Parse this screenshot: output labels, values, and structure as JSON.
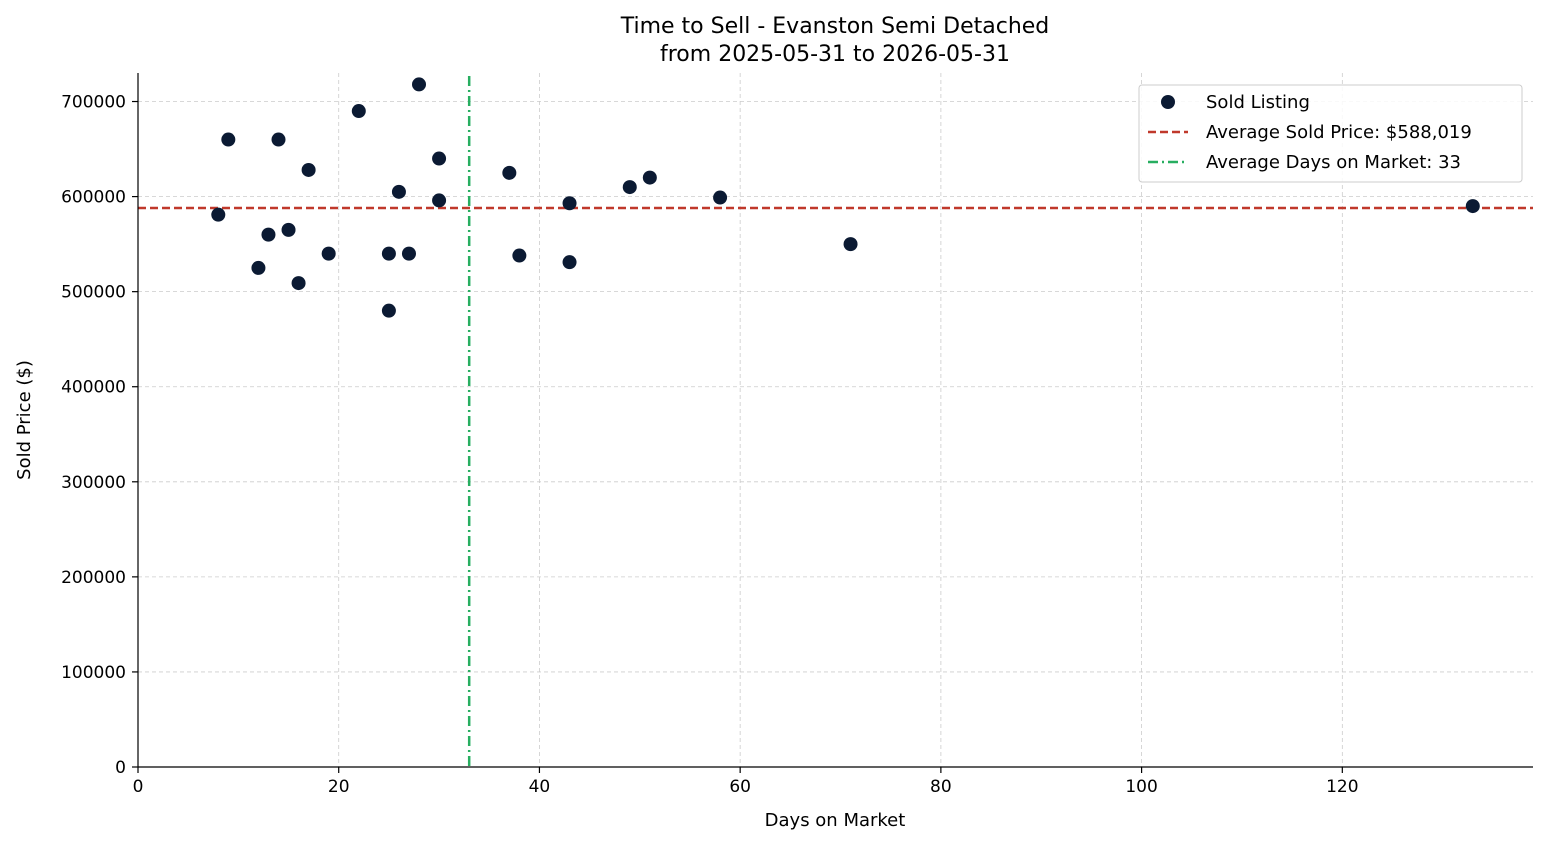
{
  "chart_data": {
    "type": "scatter",
    "title": "Time to Sell - Evanston Semi Detached",
    "subtitle": "from 2025-05-31 to 2026-05-31",
    "xlabel": "Days on Market",
    "ylabel": "Sold Price ($)",
    "xlim": [
      0,
      139
    ],
    "ylim": [
      0,
      730000
    ],
    "x_ticks": [
      0,
      20,
      40,
      60,
      80,
      100,
      120
    ],
    "y_ticks": [
      0,
      100000,
      200000,
      300000,
      400000,
      500000,
      600000,
      700000
    ],
    "x_tick_labels": [
      "0",
      "20",
      "40",
      "60",
      "80",
      "100",
      "120"
    ],
    "y_tick_labels": [
      "0",
      "100000",
      "200000",
      "300000",
      "400000",
      "500000",
      "600000",
      "700000"
    ],
    "grid": true,
    "legend_position": "top-right",
    "series": [
      {
        "name": "Sold Listing",
        "color": "#0b1a33",
        "points": [
          {
            "x": 8,
            "y": 581000
          },
          {
            "x": 9,
            "y": 660000
          },
          {
            "x": 12,
            "y": 525000
          },
          {
            "x": 13,
            "y": 560000
          },
          {
            "x": 14,
            "y": 660000
          },
          {
            "x": 15,
            "y": 565000
          },
          {
            "x": 16,
            "y": 509000
          },
          {
            "x": 17,
            "y": 628000
          },
          {
            "x": 19,
            "y": 540000
          },
          {
            "x": 22,
            "y": 690000
          },
          {
            "x": 25,
            "y": 540000
          },
          {
            "x": 25,
            "y": 480000
          },
          {
            "x": 26,
            "y": 605000
          },
          {
            "x": 27,
            "y": 540000
          },
          {
            "x": 28,
            "y": 718000
          },
          {
            "x": 30,
            "y": 640000
          },
          {
            "x": 30,
            "y": 596000
          },
          {
            "x": 37,
            "y": 625000
          },
          {
            "x": 38,
            "y": 538000
          },
          {
            "x": 43,
            "y": 593000
          },
          {
            "x": 43,
            "y": 531000
          },
          {
            "x": 49,
            "y": 610000
          },
          {
            "x": 51,
            "y": 620000
          },
          {
            "x": 58,
            "y": 599000
          },
          {
            "x": 71,
            "y": 550000
          },
          {
            "x": 133,
            "y": 590000
          }
        ]
      }
    ],
    "reference_lines": [
      {
        "name": "Average Sold Price: $588,019",
        "orientation": "horizontal",
        "value": 588019,
        "color": "#c0392b",
        "style": "dashed"
      },
      {
        "name": "Average Days on Market: 33",
        "orientation": "vertical",
        "value": 33,
        "color": "#27ae60",
        "style": "dashdot"
      }
    ]
  }
}
